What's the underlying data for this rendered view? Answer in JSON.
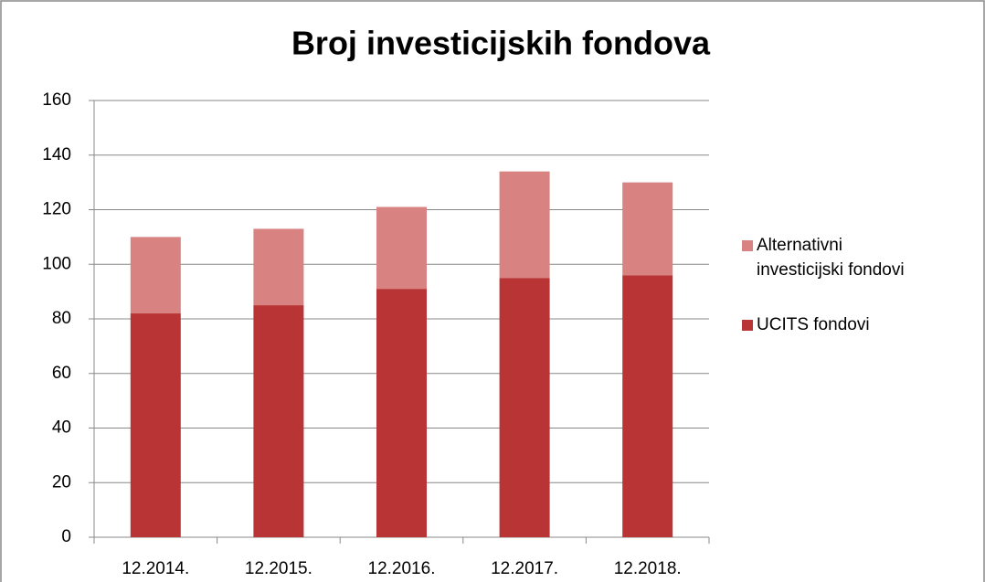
{
  "chart_data": {
    "type": "stacked_bar",
    "title": "Broj investicijskih fondova",
    "categories": [
      "12.2014.",
      "12.2015.",
      "12.2016.",
      "12.2017.",
      "12.2018."
    ],
    "series": [
      {
        "name": "UCITS fondovi",
        "color": "#b93434",
        "values": [
          82,
          85,
          91,
          95,
          96
        ]
      },
      {
        "name": "Alternativni investicijski fondovi",
        "color": "#d88282",
        "values": [
          28,
          28,
          30,
          39,
          34
        ]
      }
    ],
    "ylim": [
      0,
      160
    ],
    "yticks": [
      0,
      20,
      40,
      60,
      80,
      100,
      120,
      140,
      160
    ],
    "grid": true,
    "legend": "right"
  }
}
